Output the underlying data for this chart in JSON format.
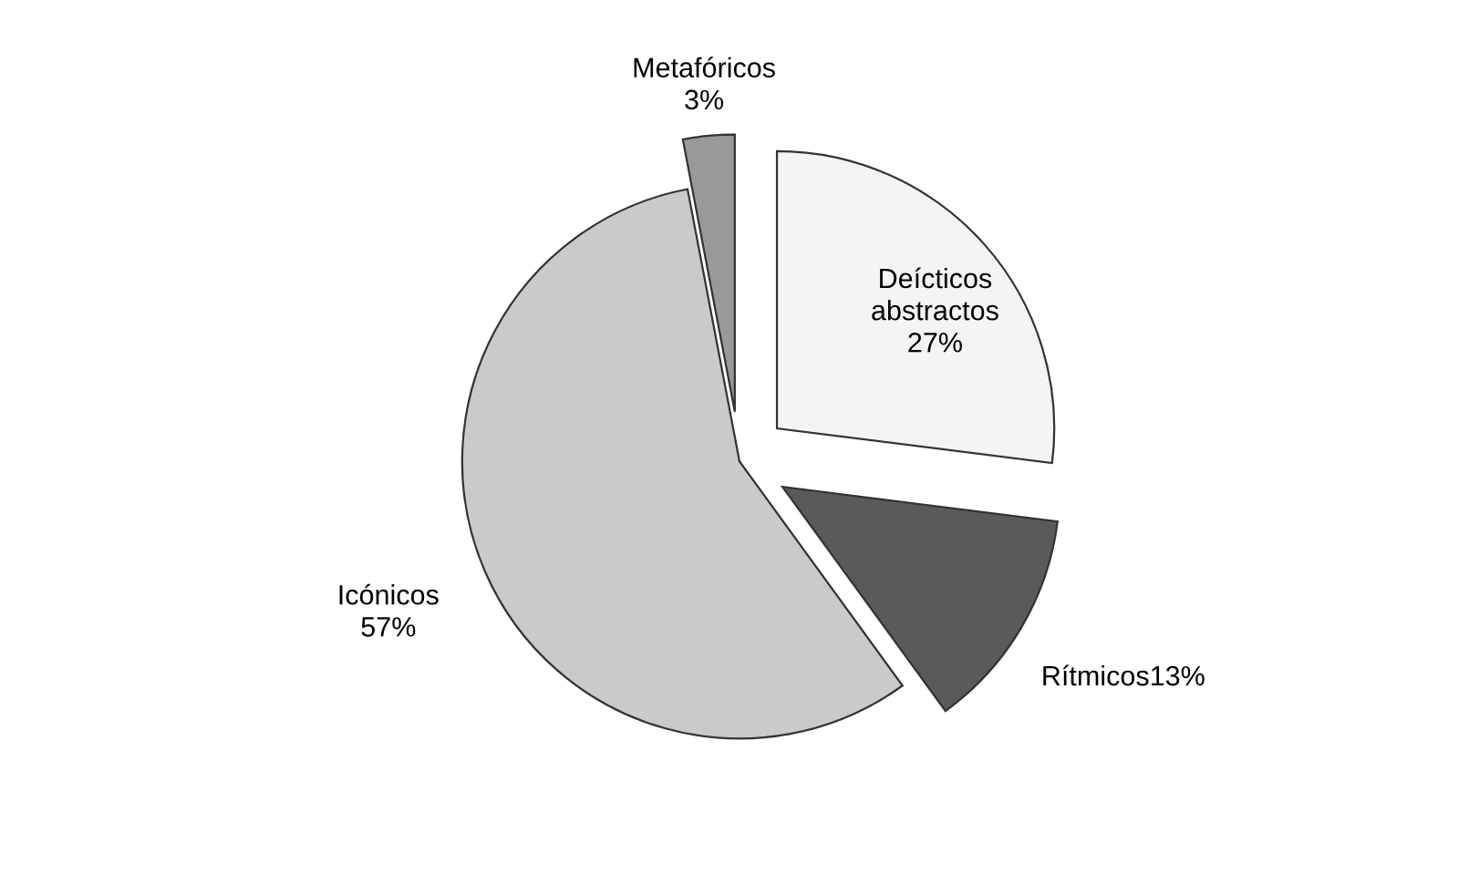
{
  "chart_data": {
    "type": "pie",
    "categories": [
      "Deícticos abstractos",
      "Rítmicos",
      "Icónicos",
      "Metafóricos"
    ],
    "values": [
      27,
      13,
      57,
      3
    ],
    "value_labels": [
      "27%",
      "13%",
      "57%",
      "3%"
    ],
    "colors": [
      "#f4f4f4",
      "#5a5a5a",
      "#cacaca",
      "#999999"
    ],
    "legend": false
  }
}
